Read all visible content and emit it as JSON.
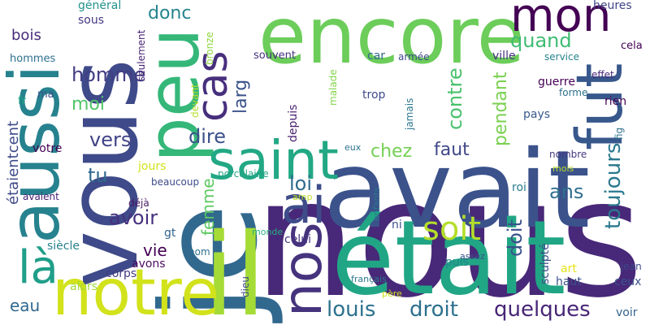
{
  "words": [
    {
      "text": "nous",
      "color": "#482878",
      "weight": 1.0
    },
    {
      "text": "je",
      "color": "#31688e",
      "weight": 0.9
    },
    {
      "text": "avait",
      "color": "#3b528b",
      "weight": 0.85
    },
    {
      "text": "était",
      "color": "#21a685",
      "weight": 0.8
    },
    {
      "text": "vous",
      "color": "#3e4a89",
      "weight": 0.8
    },
    {
      "text": "il",
      "color": "#a5db36",
      "weight": 0.75
    },
    {
      "text": "encore",
      "color": "#6ccd5a",
      "weight": 0.65
    },
    {
      "text": "aussi",
      "color": "#26828e",
      "weight": 0.6
    },
    {
      "text": "peu",
      "color": "#35b779",
      "weight": 0.55
    },
    {
      "text": "notre",
      "color": "#d2e21b",
      "weight": 0.55
    },
    {
      "text": "fut",
      "color": "#38588c",
      "weight": 0.5
    },
    {
      "text": "saint",
      "color": "#22a884",
      "weight": 0.45
    },
    {
      "text": "nos",
      "color": "#46337e",
      "weight": 0.45
    },
    {
      "text": "mon",
      "color": "#440154",
      "weight": 0.45
    },
    {
      "text": "ai",
      "color": "#3e4c8a",
      "weight": 0.4
    },
    {
      "text": "cas",
      "color": "#472f7d",
      "weight": 0.4
    },
    {
      "text": "là",
      "color": "#1f9e89",
      "weight": 0.35
    },
    {
      "text": "soit",
      "color": "#b5de2b",
      "weight": 0.3
    },
    {
      "text": "louis",
      "color": "#2c728e",
      "weight": 0.25
    },
    {
      "text": "droit",
      "color": "#2d708e",
      "weight": 0.25
    },
    {
      "text": "quelques",
      "color": "#482677",
      "weight": 0.25
    },
    {
      "text": "toujours",
      "color": "#2a788e",
      "weight": 0.25
    },
    {
      "text": "quand",
      "color": "#3fbc73",
      "weight": 0.22
    },
    {
      "text": "contre",
      "color": "#4ac16d",
      "weight": 0.22
    },
    {
      "text": "donc",
      "color": "#25848e",
      "weight": 0.22
    },
    {
      "text": "homme",
      "color": "#433d84",
      "weight": 0.22
    },
    {
      "text": "moi",
      "color": "#52c569",
      "weight": 0.2
    },
    {
      "text": "vers",
      "color": "#414487",
      "weight": 0.2
    },
    {
      "text": "dire",
      "color": "#3b518b",
      "weight": 0.2
    },
    {
      "text": "chez",
      "color": "#75d054",
      "weight": 0.2
    },
    {
      "text": "faut",
      "color": "#3f4788",
      "weight": 0.2
    },
    {
      "text": "pendant",
      "color": "#7ad151",
      "weight": 0.18
    },
    {
      "text": "ans",
      "color": "#2e6f8e",
      "weight": 0.2
    },
    {
      "text": "doit",
      "color": "#3b528b",
      "weight": 0.18
    },
    {
      "text": "tu",
      "color": "#31688e",
      "weight": 0.2
    },
    {
      "text": "loi",
      "color": "#2f6b8e",
      "weight": 0.2
    },
    {
      "text": "avoir",
      "color": "#46307e",
      "weight": 0.2
    },
    {
      "text": "femme",
      "color": "#5ec962",
      "weight": 0.18
    },
    {
      "text": "vie",
      "color": "#440154",
      "weight": 0.18
    },
    {
      "text": "larg",
      "color": "#3b528b",
      "weight": 0.18
    },
    {
      "text": "eau",
      "color": "#31688e",
      "weight": 0.18
    },
    {
      "text": "étaientcent",
      "color": "#3e4989",
      "weight": 0.16
    },
    {
      "text": "bois",
      "color": "#472c7a",
      "weight": 0.16
    },
    {
      "text": "général",
      "color": "#21918c",
      "weight": 0.12
    },
    {
      "text": "sous",
      "color": "#443a83",
      "weight": 0.12
    },
    {
      "text": "heures",
      "color": "#414487",
      "weight": 0.12
    },
    {
      "text": "cela",
      "color": "#440154",
      "weight": 0.12
    },
    {
      "text": "hommes",
      "color": "#2d708e",
      "weight": 0.1
    },
    {
      "text": "seulement",
      "color": "#482475",
      "weight": 0.1
    },
    {
      "text": "bronze",
      "color": "#8fd744",
      "weight": 0.1
    },
    {
      "text": "souvent",
      "color": "#46327e",
      "weight": 0.1
    },
    {
      "text": "car",
      "color": "#31688e",
      "weight": 0.12
    },
    {
      "text": "armée",
      "color": "#3e4989",
      "weight": 0.1
    },
    {
      "text": "ville",
      "color": "#46337e",
      "weight": 0.12
    },
    {
      "text": "service",
      "color": "#26828e",
      "weight": 0.1
    },
    {
      "text": "effet",
      "color": "#482878",
      "weight": 0.1
    },
    {
      "text": "guerre",
      "color": "#440154",
      "weight": 0.12
    },
    {
      "text": "forme",
      "color": "#2c728e",
      "weight": 0.1
    },
    {
      "text": "rien",
      "color": "#440154",
      "weight": 0.12
    },
    {
      "text": "fr",
      "color": "#22a884",
      "weight": 0.1
    },
    {
      "text": "ma",
      "color": "#3b528b",
      "weight": 0.1
    },
    {
      "text": "devant",
      "color": "#b5de2b",
      "weight": 0.1
    },
    {
      "text": "malade",
      "color": "#84d44b",
      "weight": 0.1
    },
    {
      "text": "depuis",
      "color": "#481f70",
      "weight": 0.1
    },
    {
      "text": "trop",
      "color": "#3e4a89",
      "weight": 0.12
    },
    {
      "text": "jamais",
      "color": "#2a768e",
      "weight": 0.1
    },
    {
      "text": "pays",
      "color": "#38598c",
      "weight": 0.12
    },
    {
      "text": "fig",
      "color": "#2e6e8e",
      "weight": 0.1
    },
    {
      "text": "eux",
      "color": "#2c728e",
      "weight": 0.1
    },
    {
      "text": "votre",
      "color": "#440154",
      "weight": 0.12
    },
    {
      "text": "jours",
      "color": "#d2e21b",
      "weight": 0.12
    },
    {
      "text": "porcelaine",
      "color": "#20a386",
      "weight": 0.1
    },
    {
      "text": "beaucoup",
      "color": "#3e4c8a",
      "weight": 0.1
    },
    {
      "text": "nombre",
      "color": "#453781",
      "weight": 0.1
    },
    {
      "text": "mois",
      "color": "#b8de29",
      "weight": 0.1
    },
    {
      "text": "roi",
      "color": "#287c8e",
      "weight": 0.12
    },
    {
      "text": "déjà",
      "color": "#471365",
      "weight": 0.1
    },
    {
      "text": "amp",
      "color": "#bddf26",
      "weight": 0.1
    },
    {
      "text": "enfants",
      "color": "#2a788e",
      "weight": 0.1
    },
    {
      "text": "ni",
      "color": "#3b528b",
      "weight": 0.12
    },
    {
      "text": "avaient",
      "color": "#482173",
      "weight": 0.1
    },
    {
      "text": "gt",
      "color": "#33638d",
      "weight": 0.12
    },
    {
      "text": "monde",
      "color": "#29af7f",
      "weight": 0.1
    },
    {
      "text": "celui",
      "color": "#46327e",
      "weight": 0.12
    },
    {
      "text": "siècle",
      "color": "#26828e",
      "weight": 0.12
    },
    {
      "text": "avons",
      "color": "#4c0b5f",
      "weight": 0.12
    },
    {
      "text": "nom",
      "color": "#2e6f8e",
      "weight": 0.1
    },
    {
      "text": "sculpté",
      "color": "#3e4c8a",
      "weight": 0.12
    },
    {
      "text": "assez",
      "color": "#3b528b",
      "weight": 0.1
    },
    {
      "text": "puis",
      "color": "#25848e",
      "weight": 0.12
    },
    {
      "text": "art",
      "color": "#e5e419",
      "weight": 0.12
    },
    {
      "text": "jean",
      "color": "#3e4989",
      "weight": 0.1
    },
    {
      "text": "corps",
      "color": "#443983",
      "weight": 0.12
    },
    {
      "text": "alors",
      "color": "#a0da39",
      "weight": 0.12
    },
    {
      "text": "haut",
      "color": "#3b528b",
      "weight": 0.12
    },
    {
      "text": "ceux",
      "color": "#3b528b",
      "weight": 0.12
    },
    {
      "text": "français",
      "color": "#2a788e",
      "weight": 0.1
    },
    {
      "text": "dieu",
      "color": "#3e4a89",
      "weight": 0.1
    },
    {
      "text": "père",
      "color": "#d2e21b",
      "weight": 0.1
    },
    {
      "text": "voir",
      "color": "#33638d",
      "weight": 0.12
    }
  ]
}
